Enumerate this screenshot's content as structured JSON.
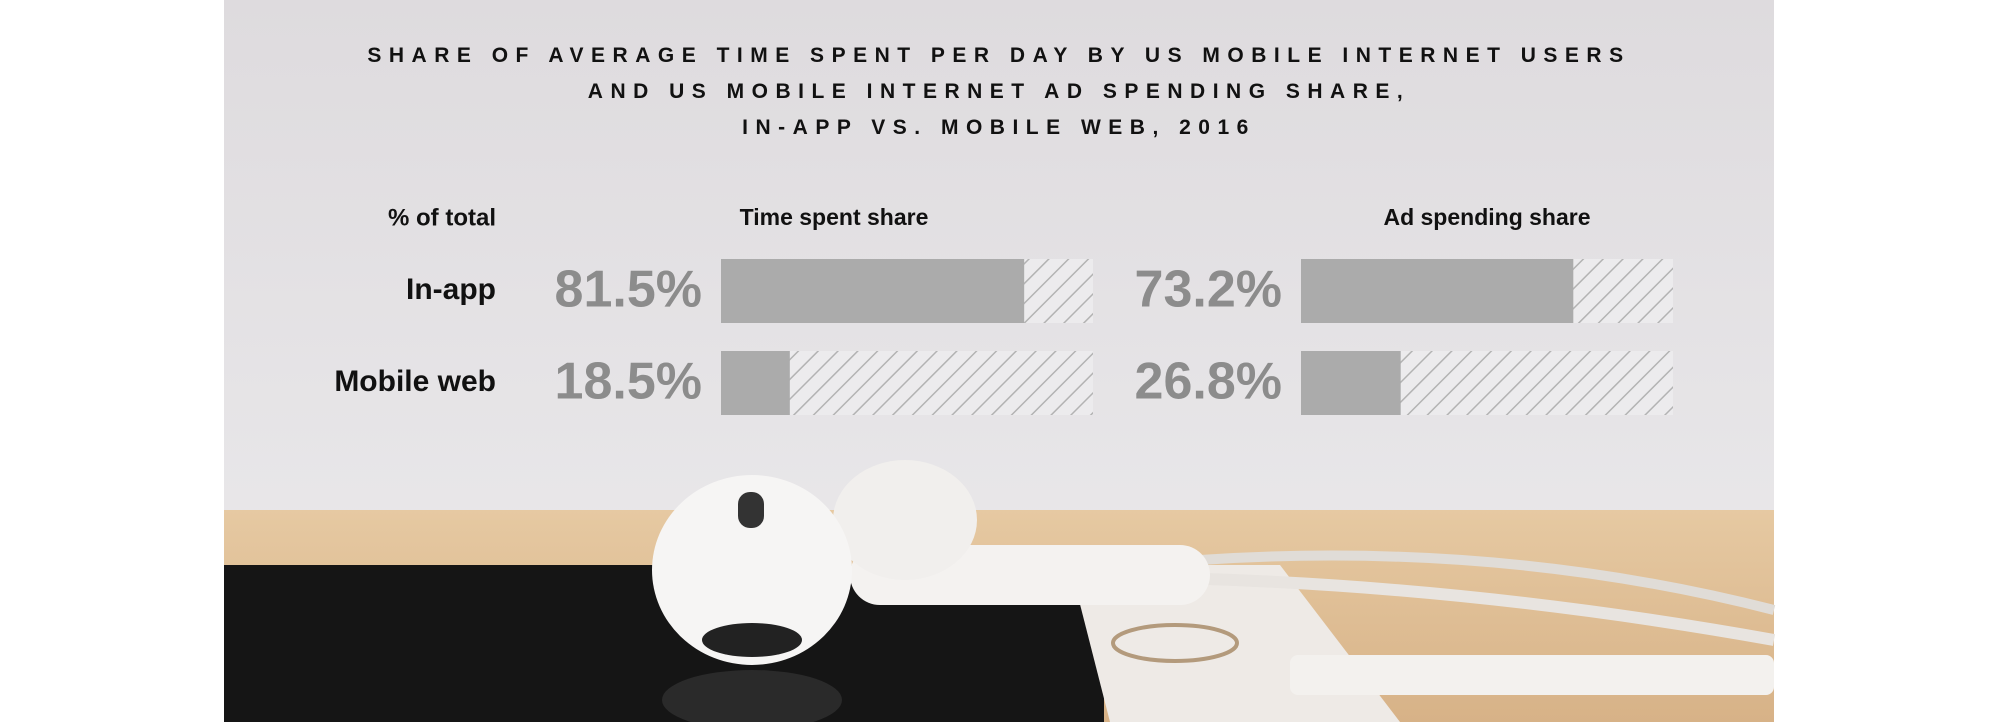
{
  "chart_data": {
    "type": "bar",
    "orientation": "horizontal",
    "title": "SHARE OF AVERAGE TIME SPENT PER DAY BY US MOBILE INTERNET USERS\nAND US MOBILE INTERNET AD SPENDING SHARE,\nIN-APP VS. MOBILE WEB, 2016",
    "y_label": "% of total",
    "categories": [
      "In-app",
      "Mobile web"
    ],
    "xlim": [
      0,
      100
    ],
    "series": [
      {
        "name": "Time spent share",
        "color": "#ababab",
        "values": [
          81.5,
          18.5
        ],
        "value_labels": [
          "81.5%",
          "18.5%"
        ]
      },
      {
        "name": "Ad spending share",
        "color": "#ababab",
        "values": [
          73.2,
          26.8
        ],
        "value_labels": [
          "73.2%",
          "26.8%"
        ]
      }
    ]
  }
}
